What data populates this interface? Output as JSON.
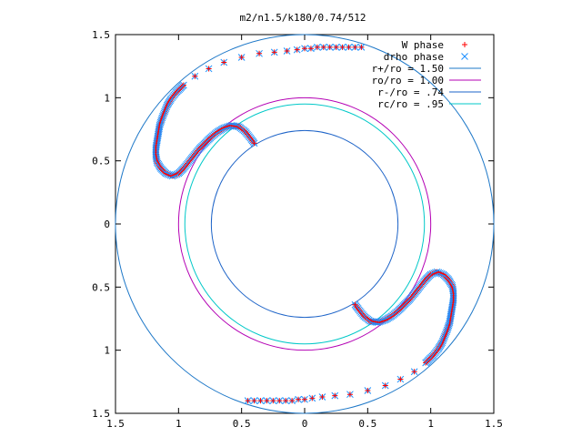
{
  "chart_data": {
    "type": "scatter",
    "title": "m2/n1.5/k180/0.74/512",
    "xlabel": "",
    "ylabel": "",
    "xlim": [
      -1.5,
      1.5
    ],
    "ylim": [
      -1.5,
      1.5
    ],
    "x_tick_values": [
      -1.5,
      -1,
      -0.5,
      0,
      0.5,
      1,
      1.5
    ],
    "x_tick_labels": [
      "1.5",
      "1",
      "0.5",
      "0",
      "0.5",
      "1",
      "1.5"
    ],
    "y_tick_values": [
      1.5,
      1,
      0.5,
      0,
      -0.5,
      -1,
      -1.5
    ],
    "y_tick_labels": [
      "1.5",
      "1",
      "0.5",
      "0",
      "0.5",
      "1",
      "1.5"
    ],
    "grid": false,
    "legend_position": "top-right",
    "series": [
      {
        "name": "W phase",
        "marker": "plus",
        "color": "#ff0000"
      },
      {
        "name": "drho phase",
        "marker": "cross",
        "color": "#1e90ff"
      }
    ],
    "phase_points": [
      [
        0.45,
        1.4
      ],
      [
        0.4,
        1.4
      ],
      [
        0.35,
        1.4
      ],
      [
        0.3,
        1.4
      ],
      [
        0.25,
        1.4
      ],
      [
        0.2,
        1.4
      ],
      [
        0.15,
        1.4
      ],
      [
        0.1,
        1.4
      ],
      [
        0.05,
        1.39
      ],
      [
        0.0,
        1.39
      ],
      [
        -0.06,
        1.38
      ],
      [
        -0.14,
        1.37
      ],
      [
        -0.24,
        1.36
      ],
      [
        -0.36,
        1.35
      ],
      [
        -0.5,
        1.32
      ],
      [
        -0.64,
        1.28
      ],
      [
        -0.76,
        1.23
      ],
      [
        -0.87,
        1.17
      ],
      [
        -0.96,
        1.1
      ],
      [
        -1.02,
        1.04
      ],
      [
        -1.06,
        0.99
      ],
      [
        -1.09,
        0.94
      ],
      [
        -1.11,
        0.89
      ],
      [
        -1.13,
        0.84
      ],
      [
        -1.15,
        0.78
      ],
      [
        -1.16,
        0.72
      ],
      [
        -1.17,
        0.66
      ],
      [
        -1.18,
        0.6
      ],
      [
        -1.18,
        0.54
      ],
      [
        -1.17,
        0.49
      ],
      [
        -1.14,
        0.44
      ],
      [
        -1.1,
        0.4
      ],
      [
        -1.05,
        0.38
      ],
      [
        -1.0,
        0.4
      ],
      [
        -0.96,
        0.44
      ],
      [
        -0.92,
        0.49
      ],
      [
        -0.88,
        0.54
      ],
      [
        -0.84,
        0.59
      ],
      [
        -0.79,
        0.64
      ],
      [
        -0.74,
        0.69
      ],
      [
        -0.69,
        0.73
      ],
      [
        -0.64,
        0.76
      ],
      [
        -0.58,
        0.78
      ],
      [
        -0.52,
        0.77
      ],
      [
        -0.47,
        0.73
      ],
      [
        -0.43,
        0.68
      ],
      [
        -0.4,
        0.64
      ],
      [
        -0.45,
        -1.4
      ],
      [
        -0.4,
        -1.4
      ],
      [
        -0.35,
        -1.4
      ],
      [
        -0.3,
        -1.4
      ],
      [
        -0.25,
        -1.4
      ],
      [
        -0.2,
        -1.4
      ],
      [
        -0.15,
        -1.4
      ],
      [
        -0.1,
        -1.4
      ],
      [
        -0.05,
        -1.39
      ],
      [
        0.0,
        -1.39
      ],
      [
        0.06,
        -1.38
      ],
      [
        0.14,
        -1.37
      ],
      [
        0.24,
        -1.36
      ],
      [
        0.36,
        -1.35
      ],
      [
        0.5,
        -1.32
      ],
      [
        0.64,
        -1.28
      ],
      [
        0.76,
        -1.23
      ],
      [
        0.87,
        -1.17
      ],
      [
        0.96,
        -1.1
      ],
      [
        1.02,
        -1.04
      ],
      [
        1.06,
        -0.99
      ],
      [
        1.09,
        -0.94
      ],
      [
        1.11,
        -0.89
      ],
      [
        1.13,
        -0.84
      ],
      [
        1.15,
        -0.78
      ],
      [
        1.16,
        -0.72
      ],
      [
        1.17,
        -0.66
      ],
      [
        1.18,
        -0.6
      ],
      [
        1.18,
        -0.54
      ],
      [
        1.17,
        -0.49
      ],
      [
        1.14,
        -0.44
      ],
      [
        1.1,
        -0.4
      ],
      [
        1.05,
        -0.38
      ],
      [
        1.0,
        -0.4
      ],
      [
        0.96,
        -0.44
      ],
      [
        0.92,
        -0.49
      ],
      [
        0.88,
        -0.54
      ],
      [
        0.84,
        -0.59
      ],
      [
        0.79,
        -0.64
      ],
      [
        0.74,
        -0.69
      ],
      [
        0.69,
        -0.73
      ],
      [
        0.64,
        -0.76
      ],
      [
        0.58,
        -0.78
      ],
      [
        0.52,
        -0.77
      ],
      [
        0.47,
        -0.73
      ],
      [
        0.43,
        -0.68
      ],
      [
        0.4,
        -0.64
      ]
    ],
    "circles": [
      {
        "name": "r+/ro = 1.50",
        "radius": 1.5,
        "color": "#1e78c8"
      },
      {
        "name": "ro/ro = 1.00",
        "radius": 1.0,
        "color": "#b400b4"
      },
      {
        "name": "r-/ro = .74",
        "radius": 0.74,
        "color": "#1e64c8"
      },
      {
        "name": "rc/ro = .95",
        "radius": 0.95,
        "color": "#00c8c8"
      }
    ]
  }
}
